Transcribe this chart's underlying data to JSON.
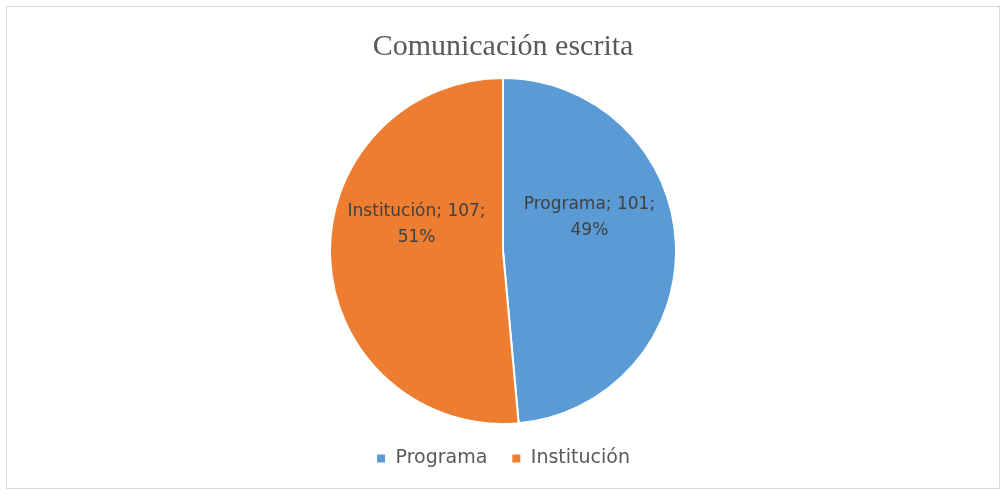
{
  "chart_data": {
    "type": "pie",
    "title": "Comunicación escrita",
    "categories": [
      "Programa",
      "Institución"
    ],
    "values": [
      101,
      107
    ],
    "colors": [
      "#5b9bd5",
      "#ed7d31"
    ],
    "value_labels": [
      "Programa; 101; 49%",
      "Institución; 107; 51%"
    ],
    "legend": "bottom"
  }
}
